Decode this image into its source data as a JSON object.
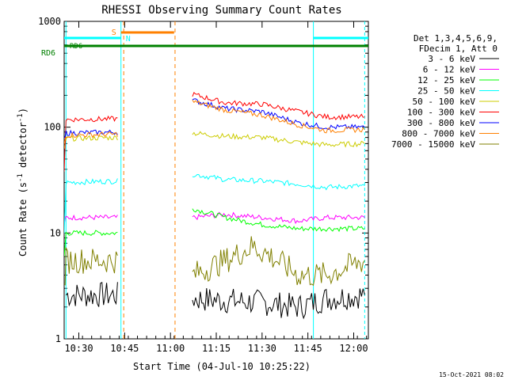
{
  "chart_data": {
    "type": "line",
    "title": "RHESSI Observing Summary Count Rates",
    "xlabel": "Start Time (04-Jul-10 10:25:22)",
    "ylabel_main": "Count Rate (s",
    "ylabel_sup1": "-1",
    "ylabel_mid": " detector",
    "ylabel_sup2": "-1",
    "ylabel_end": ")",
    "y_scale": "log",
    "ylim": [
      1,
      1000
    ],
    "xlim_minutes": [
      10.42,
      12.08
    ],
    "x_ticks": [
      {
        "t": 10.5,
        "label": "10:30"
      },
      {
        "t": 10.75,
        "label": "10:45"
      },
      {
        "t": 11.0,
        "label": "11:00"
      },
      {
        "t": 11.25,
        "label": "11:15"
      },
      {
        "t": 11.5,
        "label": "11:30"
      },
      {
        "t": 11.75,
        "label": "11:45"
      },
      {
        "t": 12.0,
        "label": "12:00"
      }
    ],
    "y_ticks": [
      {
        "v": 1,
        "label": "1"
      },
      {
        "v": 10,
        "label": "10"
      },
      {
        "v": 100,
        "label": "100"
      },
      {
        "v": 1000,
        "label": "1000"
      }
    ],
    "legend_header": [
      "Det 1,3,4,5,6,9,",
      "FDecim 1, Att 0"
    ],
    "series": [
      {
        "name": "3 - 6 keV",
        "color": "#000000",
        "values": [
          [
            10.42,
            1.0
          ],
          [
            10.43,
            2.6
          ],
          [
            10.72,
            2.6
          ],
          [
            10.735,
            1.0
          ],
          [
            11.12,
            2.4
          ],
          [
            11.3,
            2.3
          ],
          [
            11.5,
            2.2
          ],
          [
            11.7,
            2.0
          ],
          [
            11.85,
            2.4
          ],
          [
            12.06,
            2.6
          ]
        ]
      },
      {
        "name": "6 - 12 keV",
        "color": "#ff00ff",
        "values": [
          [
            10.42,
            12
          ],
          [
            10.43,
            14
          ],
          [
            10.72,
            14
          ],
          [
            10.735,
            1.0
          ],
          [
            11.12,
            14
          ],
          [
            11.3,
            15
          ],
          [
            11.5,
            14
          ],
          [
            11.7,
            13
          ],
          [
            11.85,
            14
          ],
          [
            12.06,
            14
          ]
        ]
      },
      {
        "name": "12 - 25 keV",
        "color": "#00ff00",
        "values": [
          [
            10.42,
            6
          ],
          [
            10.43,
            10
          ],
          [
            10.72,
            10
          ],
          [
            10.735,
            1.0
          ],
          [
            11.12,
            17
          ],
          [
            11.3,
            14
          ],
          [
            11.5,
            12
          ],
          [
            11.7,
            11
          ],
          [
            11.85,
            11
          ],
          [
            12.06,
            11
          ]
        ]
      },
      {
        "name": "25 - 50 keV",
        "color": "#00ffff",
        "values": [
          [
            10.42,
            10
          ],
          [
            10.43,
            30
          ],
          [
            10.72,
            31
          ],
          [
            10.735,
            1.0
          ],
          [
            11.12,
            36
          ],
          [
            11.3,
            32
          ],
          [
            11.5,
            31
          ],
          [
            11.7,
            29
          ],
          [
            11.85,
            27
          ],
          [
            12.06,
            28
          ]
        ]
      },
      {
        "name": "50 - 100 keV",
        "color": "#cccc00",
        "values": [
          [
            10.42,
            60
          ],
          [
            10.43,
            78
          ],
          [
            10.72,
            80
          ],
          [
            10.735,
            1.0
          ],
          [
            11.12,
            88
          ],
          [
            11.3,
            82
          ],
          [
            11.5,
            80
          ],
          [
            11.7,
            72
          ],
          [
            11.85,
            68
          ],
          [
            12.06,
            70
          ]
        ]
      },
      {
        "name": "100 - 300 keV",
        "color": "#ff0000",
        "values": [
          [
            10.42,
            40
          ],
          [
            10.43,
            118
          ],
          [
            10.72,
            120
          ],
          [
            10.735,
            1.0
          ],
          [
            11.12,
            205
          ],
          [
            11.3,
            170
          ],
          [
            11.5,
            165
          ],
          [
            11.7,
            140
          ],
          [
            11.85,
            125
          ],
          [
            12.06,
            125
          ]
        ]
      },
      {
        "name": "300 - 800 keV",
        "color": "#0000ff",
        "values": [
          [
            10.42,
            75
          ],
          [
            10.43,
            88
          ],
          [
            10.72,
            90
          ],
          [
            10.735,
            1.0
          ],
          [
            11.12,
            180
          ],
          [
            11.3,
            150
          ],
          [
            11.5,
            140
          ],
          [
            11.7,
            110
          ],
          [
            11.85,
            100
          ],
          [
            12.06,
            100
          ]
        ]
      },
      {
        "name": "800 - 7000 keV",
        "color": "#ff8000",
        "values": [
          [
            10.42,
            70
          ],
          [
            10.43,
            84
          ],
          [
            10.72,
            86
          ],
          [
            10.735,
            1.0
          ],
          [
            11.12,
            175
          ],
          [
            11.3,
            145
          ],
          [
            11.5,
            130
          ],
          [
            11.7,
            105
          ],
          [
            11.85,
            93
          ],
          [
            12.06,
            95
          ]
        ]
      },
      {
        "name": "7000 - 15000 keV",
        "color": "#808000",
        "values": [
          [
            10.42,
            3
          ],
          [
            10.43,
            5.5
          ],
          [
            10.72,
            5.5
          ],
          [
            10.735,
            1.0
          ],
          [
            11.12,
            4
          ],
          [
            11.3,
            5.5
          ],
          [
            11.45,
            7.5
          ],
          [
            11.55,
            6
          ],
          [
            11.7,
            4
          ],
          [
            11.85,
            4
          ],
          [
            12.06,
            5.5
          ]
        ]
      }
    ],
    "annotations": {
      "saa_label": "S",
      "night_label": "N",
      "rd6_label": "RD6",
      "rd6_small": "RD6",
      "saa_bar_minutes": [
        10.73,
        11.02
      ],
      "night_bars_minutes": [
        [
          10.42,
          10.73
        ],
        [
          11.78,
          12.08
        ]
      ],
      "dashed_lines_minutes": [
        10.745,
        11.025
      ],
      "cyan_lines_minutes": [
        10.43,
        10.73,
        11.78,
        12.06
      ]
    },
    "footer_date": "15-Oct-2021 08:02"
  }
}
